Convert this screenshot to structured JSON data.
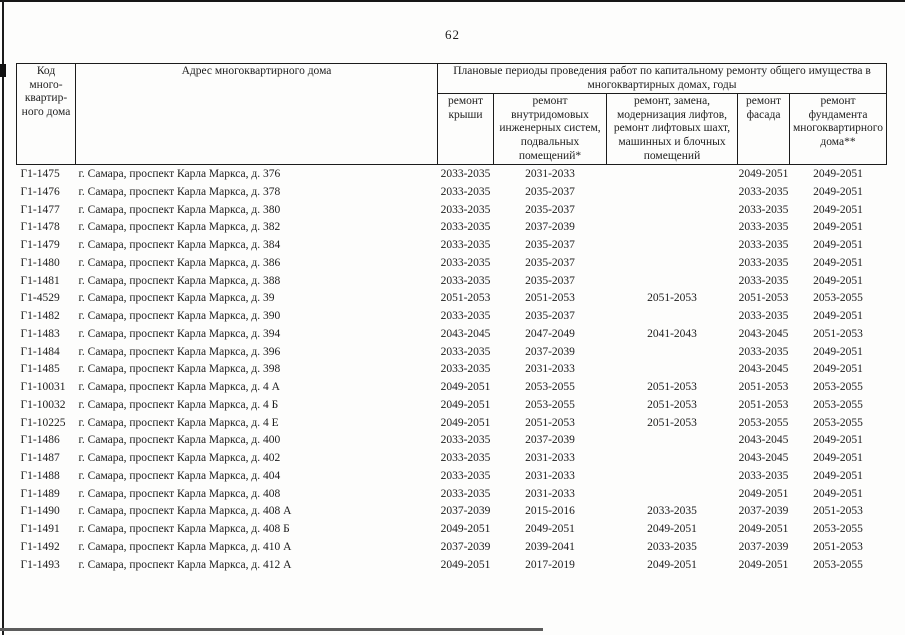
{
  "page": {
    "number": "62"
  },
  "table": {
    "header": {
      "col_code": "Код много-квартир-ного дома",
      "col_address": "Адрес многоквартирного дома",
      "group_title": "Плановые периоды проведения работ по капитальному ремонту общего имущества в многоквартирных домах, годы",
      "sub_columns": [
        "ремонт крыши",
        "ремонт внутридомовых инженерных систем, подвальных помещений*",
        "ремонт, замена, модернизация лифтов, ремонт лифтовых шахт, машинных и блочных помещений",
        "ремонт фасада",
        "ремонт фундамента многоквартирного дома**"
      ]
    },
    "rows": [
      [
        "Г1-1475",
        "г. Самара, проспект Карла Маркса, д. 376",
        "2033-2035",
        "2031-2033",
        "",
        "2049-2051",
        "2049-2051"
      ],
      [
        "Г1-1476",
        "г. Самара, проспект Карла Маркса, д. 378",
        "2033-2035",
        "2035-2037",
        "",
        "2033-2035",
        "2049-2051"
      ],
      [
        "Г1-1477",
        "г. Самара, проспект Карла Маркса, д. 380",
        "2033-2035",
        "2035-2037",
        "",
        "2033-2035",
        "2049-2051"
      ],
      [
        "Г1-1478",
        "г. Самара, проспект Карла Маркса, д. 382",
        "2033-2035",
        "2037-2039",
        "",
        "2033-2035",
        "2049-2051"
      ],
      [
        "Г1-1479",
        "г. Самара, проспект Карла Маркса, д. 384",
        "2033-2035",
        "2035-2037",
        "",
        "2033-2035",
        "2049-2051"
      ],
      [
        "Г1-1480",
        "г. Самара, проспект Карла Маркса, д. 386",
        "2033-2035",
        "2035-2037",
        "",
        "2033-2035",
        "2049-2051"
      ],
      [
        "Г1-1481",
        "г. Самара, проспект Карла Маркса, д. 388",
        "2033-2035",
        "2035-2037",
        "",
        "2033-2035",
        "2049-2051"
      ],
      [
        "Г1-4529",
        "г. Самара, проспект Карла Маркса, д. 39",
        "2051-2053",
        "2051-2053",
        "2051-2053",
        "2051-2053",
        "2053-2055"
      ],
      [
        "Г1-1482",
        "г. Самара, проспект Карла Маркса, д. 390",
        "2033-2035",
        "2035-2037",
        "",
        "2033-2035",
        "2049-2051"
      ],
      [
        "Г1-1483",
        "г. Самара, проспект Карла Маркса, д. 394",
        "2043-2045",
        "2047-2049",
        "2041-2043",
        "2043-2045",
        "2051-2053"
      ],
      [
        "Г1-1484",
        "г. Самара, проспект Карла Маркса, д. 396",
        "2033-2035",
        "2037-2039",
        "",
        "2033-2035",
        "2049-2051"
      ],
      [
        "Г1-1485",
        "г. Самара, проспект Карла Маркса, д. 398",
        "2033-2035",
        "2031-2033",
        "",
        "2043-2045",
        "2049-2051"
      ],
      [
        "Г1-10031",
        "г. Самара, проспект Карла Маркса, д. 4 А",
        "2049-2051",
        "2053-2055",
        "2051-2053",
        "2051-2053",
        "2053-2055"
      ],
      [
        "Г1-10032",
        "г. Самара, проспект Карла Маркса, д. 4 Б",
        "2049-2051",
        "2053-2055",
        "2051-2053",
        "2051-2053",
        "2053-2055"
      ],
      [
        "Г1-10225",
        "г. Самара, проспект Карла Маркса, д. 4 Е",
        "2049-2051",
        "2051-2053",
        "2051-2053",
        "2053-2055",
        "2053-2055"
      ],
      [
        "Г1-1486",
        "г. Самара, проспект Карла Маркса, д. 400",
        "2033-2035",
        "2037-2039",
        "",
        "2043-2045",
        "2049-2051"
      ],
      [
        "Г1-1487",
        "г. Самара, проспект Карла Маркса, д. 402",
        "2033-2035",
        "2031-2033",
        "",
        "2043-2045",
        "2049-2051"
      ],
      [
        "Г1-1488",
        "г. Самара, проспект Карла Маркса, д. 404",
        "2033-2035",
        "2031-2033",
        "",
        "2033-2035",
        "2049-2051"
      ],
      [
        "Г1-1489",
        "г. Самара, проспект Карла Маркса, д. 408",
        "2033-2035",
        "2031-2033",
        "",
        "2049-2051",
        "2049-2051"
      ],
      [
        "Г1-1490",
        "г. Самара, проспект Карла Маркса, д. 408 А",
        "2037-2039",
        "2015-2016",
        "2033-2035",
        "2037-2039",
        "2051-2053"
      ],
      [
        "Г1-1491",
        "г. Самара, проспект Карла Маркса, д. 408 Б",
        "2049-2051",
        "2049-2051",
        "2049-2051",
        "2049-2051",
        "2053-2055"
      ],
      [
        "Г1-1492",
        "г. Самара, проспект Карла Маркса, д. 410 А",
        "2037-2039",
        "2039-2041",
        "2033-2035",
        "2037-2039",
        "2051-2053"
      ],
      [
        "Г1-1493",
        "г. Самара, проспект Карла Маркса, д. 412 А",
        "2049-2051",
        "2017-2019",
        "2049-2051",
        "2049-2051",
        "2053-2055"
      ]
    ]
  }
}
